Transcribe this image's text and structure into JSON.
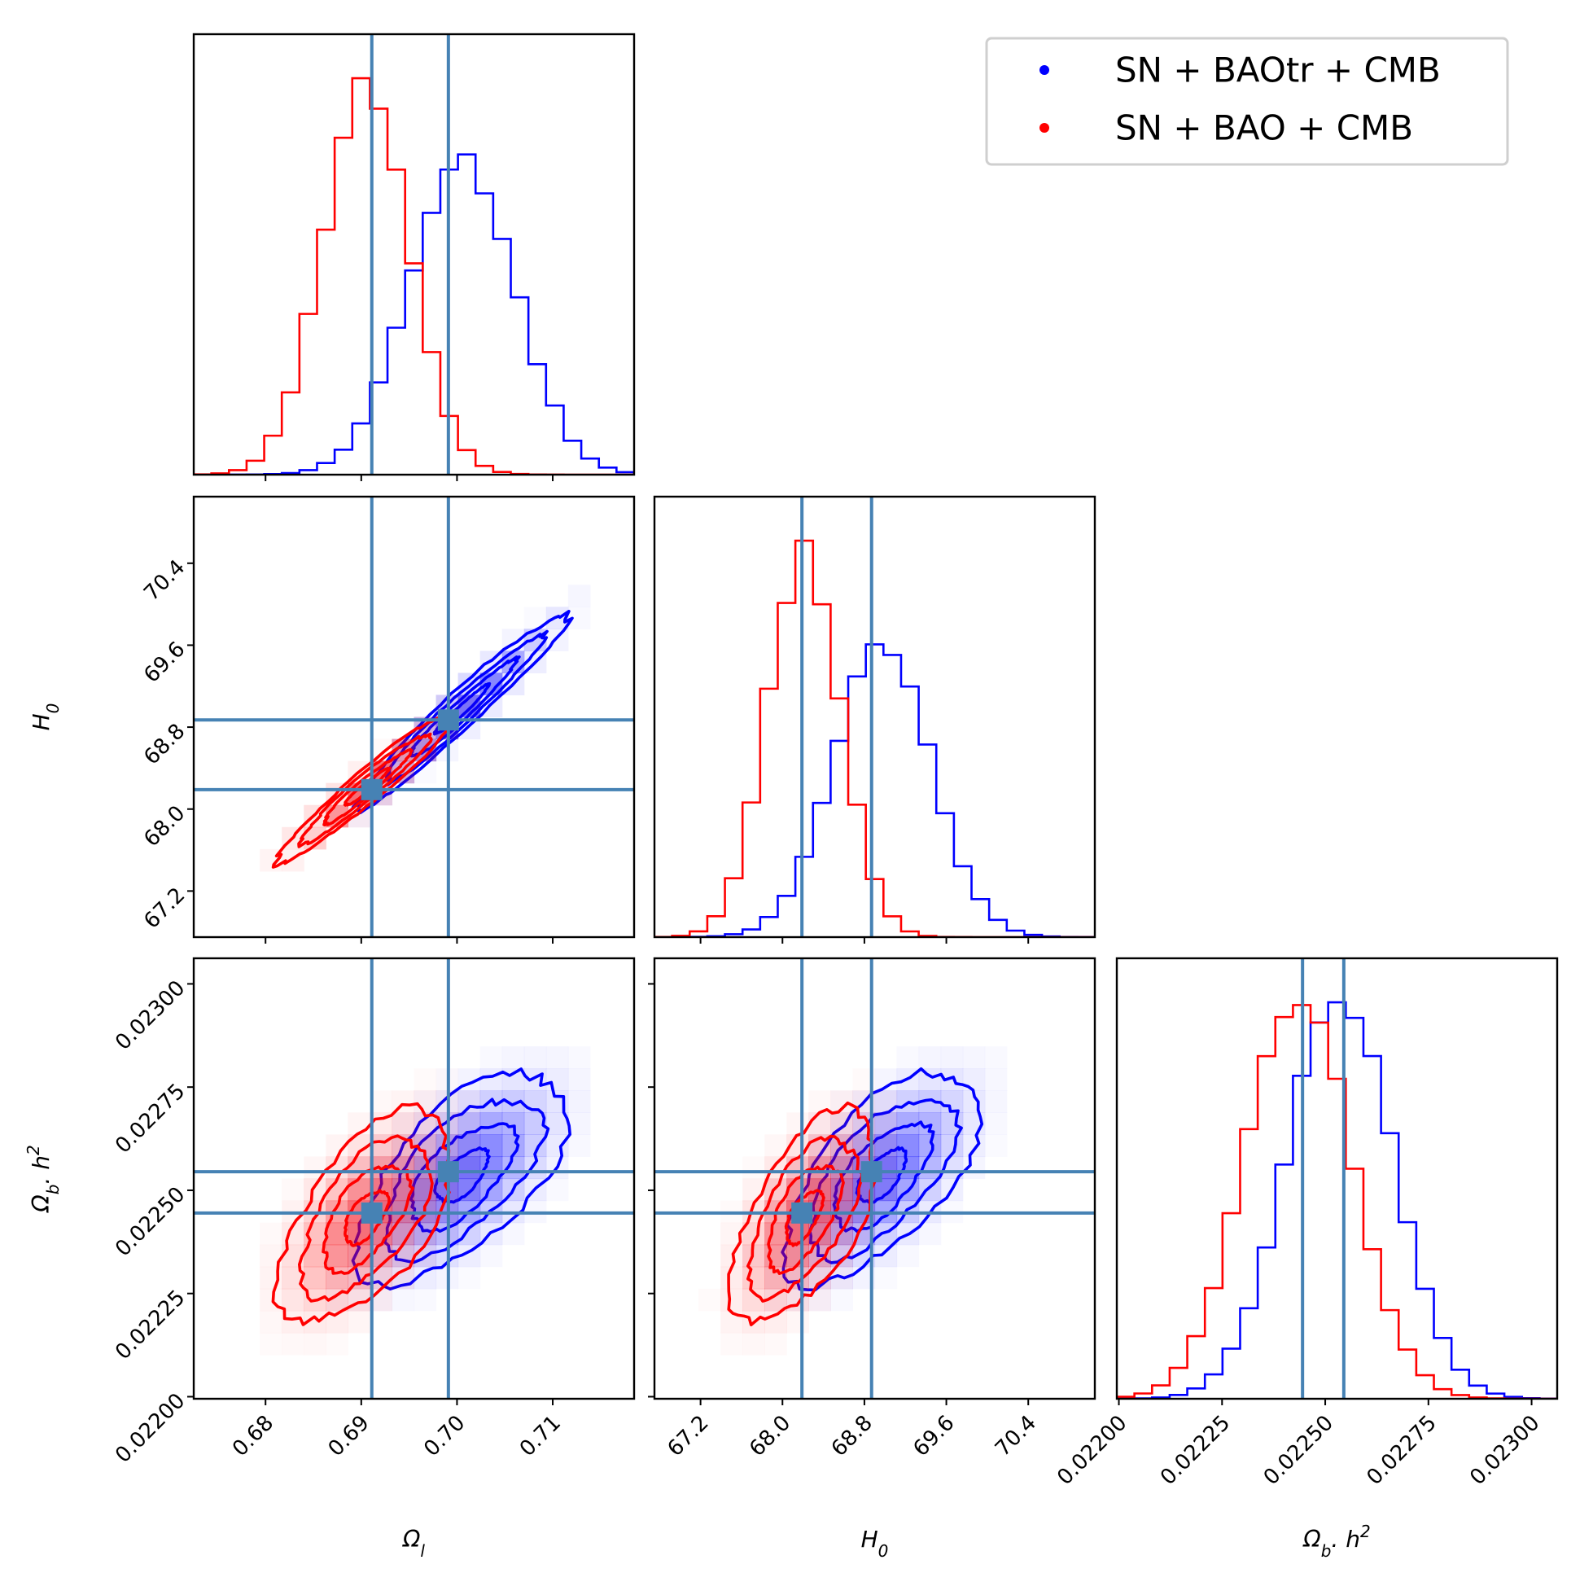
{
  "chart_data": {
    "type": "corner",
    "parameters": [
      {
        "id": "omega_l",
        "label": "Ω",
        "sub": "l",
        "range": [
          0.6725,
          0.7185
        ],
        "ticks": [
          0.68,
          0.69,
          0.7,
          0.71
        ],
        "tick_labels": [
          "0.68",
          "0.69",
          "0.70",
          "0.71"
        ]
      },
      {
        "id": "H0",
        "label": "H",
        "sub": "0",
        "range": [
          66.75,
          71.05
        ],
        "ticks": [
          67.2,
          68.0,
          68.8,
          69.6,
          70.4
        ],
        "tick_labels": [
          "67.2",
          "68.0",
          "68.8",
          "69.6",
          "70.4"
        ]
      },
      {
        "id": "omega_b_h2",
        "label": "Ω",
        "sub": "b",
        "suffix": ". h",
        "sup": "2",
        "range": [
          0.021995,
          0.023062
        ],
        "ticks": [
          0.022,
          0.02225,
          0.0225,
          0.02275,
          0.023
        ],
        "tick_labels": [
          "0.02200",
          "0.02225",
          "0.02250",
          "0.02275",
          "0.02300"
        ]
      }
    ],
    "legend": {
      "position": "top-right",
      "entries": [
        {
          "label": "SN + BAOtr + CMB",
          "color": "#0000ff"
        },
        {
          "label": "SN + BAO + CMB",
          "color": "#ff0000"
        }
      ]
    },
    "truths": {
      "color": "#4682b4",
      "values": [
        [
          0.6991,
          68.87,
          0.022545
        ],
        [
          0.6911,
          68.19,
          0.022445
        ]
      ]
    },
    "series": [
      {
        "name": "SN + BAOtr + CMB",
        "color": "#0000ff",
        "mean": [
          0.7005,
          68.97,
          0.022535
        ],
        "sigma": [
          0.0055,
          0.475,
          0.000128
        ],
        "corr": [
          [
            1,
            0.97,
            0.62
          ],
          [
            0.97,
            1,
            0.63
          ],
          [
            0.62,
            0.63,
            1
          ]
        ]
      },
      {
        "name": "SN + BAO + CMB",
        "color": "#ff0000",
        "mean": [
          0.6905,
          68.21,
          0.022435
        ],
        "sigma": [
          0.0045,
          0.355,
          0.000128
        ],
        "corr": [
          [
            1,
            0.96,
            0.58
          ],
          [
            0.96,
            1,
            0.6
          ],
          [
            0.58,
            0.6,
            1
          ]
        ]
      }
    ]
  }
}
